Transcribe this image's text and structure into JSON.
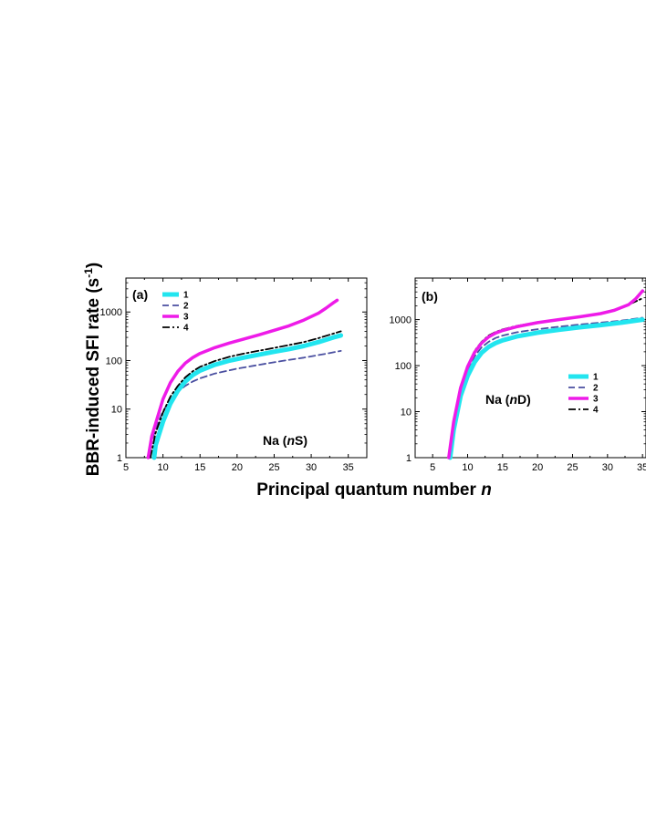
{
  "chart_data": {
    "type": "line",
    "xlabel": "Principal quantum number",
    "xlabel_var": "n",
    "ylabel": "BBR-induced SFI rate (s",
    "ylabel_exp": "-1",
    "ylabel_close": ")",
    "yscale": "log",
    "colors": {
      "1": "#22e5ef",
      "2": "#4a4fa0",
      "3": "#ee1be8",
      "4": "#000000"
    },
    "panels": [
      {
        "label": "(a)",
        "species": "Na (",
        "species_var": "n",
        "species_state": "S)",
        "legend_position": "top-left",
        "xlim": [
          5,
          37.5
        ],
        "ylim": [
          1,
          5000
        ],
        "xticks": [
          "5",
          "10",
          "15",
          "20",
          "25",
          "30",
          "35"
        ],
        "yticks": [
          "1",
          "10",
          "100",
          "1000"
        ],
        "series": [
          {
            "name": "1",
            "x": [
              8.8,
              9,
              10,
              11,
              12,
              13,
              14,
              15,
              17,
              19,
              21,
              23,
              25,
              27,
              29,
              31,
              33,
              34
            ],
            "y": [
              1,
              1.8,
              5.5,
              13,
              24,
              37,
              50,
              62,
              82,
              100,
              116,
              133,
              152,
              172,
              200,
              240,
              300,
              330
            ]
          },
          {
            "name": "2",
            "x": [
              8,
              8.5,
              9,
              10,
              11,
              12,
              13,
              14,
              15,
              17,
              20,
              23,
              26,
              29,
              32,
              34
            ],
            "y": [
              1,
              2.2,
              4,
              9,
              16,
              23,
              30,
              37,
              43,
              54,
              68,
              82,
              98,
              115,
              138,
              158
            ]
          },
          {
            "name": "3",
            "x": [
              8,
              8.5,
              9,
              10,
              11,
              12,
              13,
              14,
              15,
              17,
              19,
              21,
              23,
              25,
              27,
              29,
              31,
              32,
              33,
              33.5
            ],
            "y": [
              1,
              2.8,
              5,
              16,
              35,
              60,
              88,
              115,
              140,
              185,
              230,
              280,
              340,
              420,
              520,
              680,
              950,
              1200,
              1550,
              1750
            ]
          },
          {
            "name": "4",
            "x": [
              8.3,
              9,
              10,
              11,
              12,
              13,
              14,
              15,
              17,
              19,
              21,
              23,
              25,
              27,
              29,
              31,
              33,
              34
            ],
            "y": [
              1,
              3.2,
              8.5,
              18,
              30,
              45,
              60,
              74,
              98,
              120,
              140,
              160,
              182,
              208,
              240,
              290,
              360,
              400
            ]
          }
        ]
      },
      {
        "label": "(b)",
        "species": "Na (",
        "species_var": "n",
        "species_state": "D)",
        "legend_position": "right",
        "xlim": [
          2.5,
          35.5
        ],
        "ylim": [
          1,
          8000
        ],
        "xticks": [
          "5",
          "10",
          "15",
          "20",
          "25",
          "30",
          "35"
        ],
        "yticks": [
          "1",
          "10",
          "100",
          "1000"
        ],
        "series": [
          {
            "name": "1",
            "x": [
              7.5,
              8,
              9,
              10,
              11,
              12,
              13,
              14,
              15,
              17,
              20,
              23,
              26,
              29,
              32,
              35
            ],
            "y": [
              1,
              4,
              22,
              60,
              120,
              190,
              255,
              310,
              355,
              430,
              520,
              600,
              680,
              760,
              860,
              1000
            ]
          },
          {
            "name": "2",
            "x": [
              7.3,
              8,
              9,
              10,
              11,
              12,
              13,
              14,
              15,
              17,
              20,
              23,
              26,
              29,
              32,
              35
            ],
            "y": [
              1,
              6,
              30,
              80,
              160,
              250,
              330,
              400,
              450,
              530,
              620,
              700,
              780,
              860,
              950,
              1100
            ]
          },
          {
            "name": "3",
            "x": [
              7.3,
              8,
              9,
              10,
              11,
              12,
              13,
              14,
              15,
              17,
              20,
              23,
              26,
              29,
              31,
              33,
              34,
              35
            ],
            "y": [
              1,
              6,
              33,
              95,
              195,
              310,
              420,
              510,
              580,
              700,
              860,
              1000,
              1150,
              1350,
              1600,
              2100,
              2800,
              4200
            ]
          },
          {
            "name": "4",
            "x": [
              7.3,
              8,
              9,
              10,
              11,
              12,
              13,
              14,
              15,
              17,
              20,
              23,
              26,
              29,
              32,
              35
            ],
            "y": [
              1,
              6,
              34,
              100,
              210,
              330,
              450,
              540,
              610,
              730,
              880,
              1020,
              1170,
              1380,
              1800,
              2900
            ]
          }
        ]
      }
    ]
  }
}
